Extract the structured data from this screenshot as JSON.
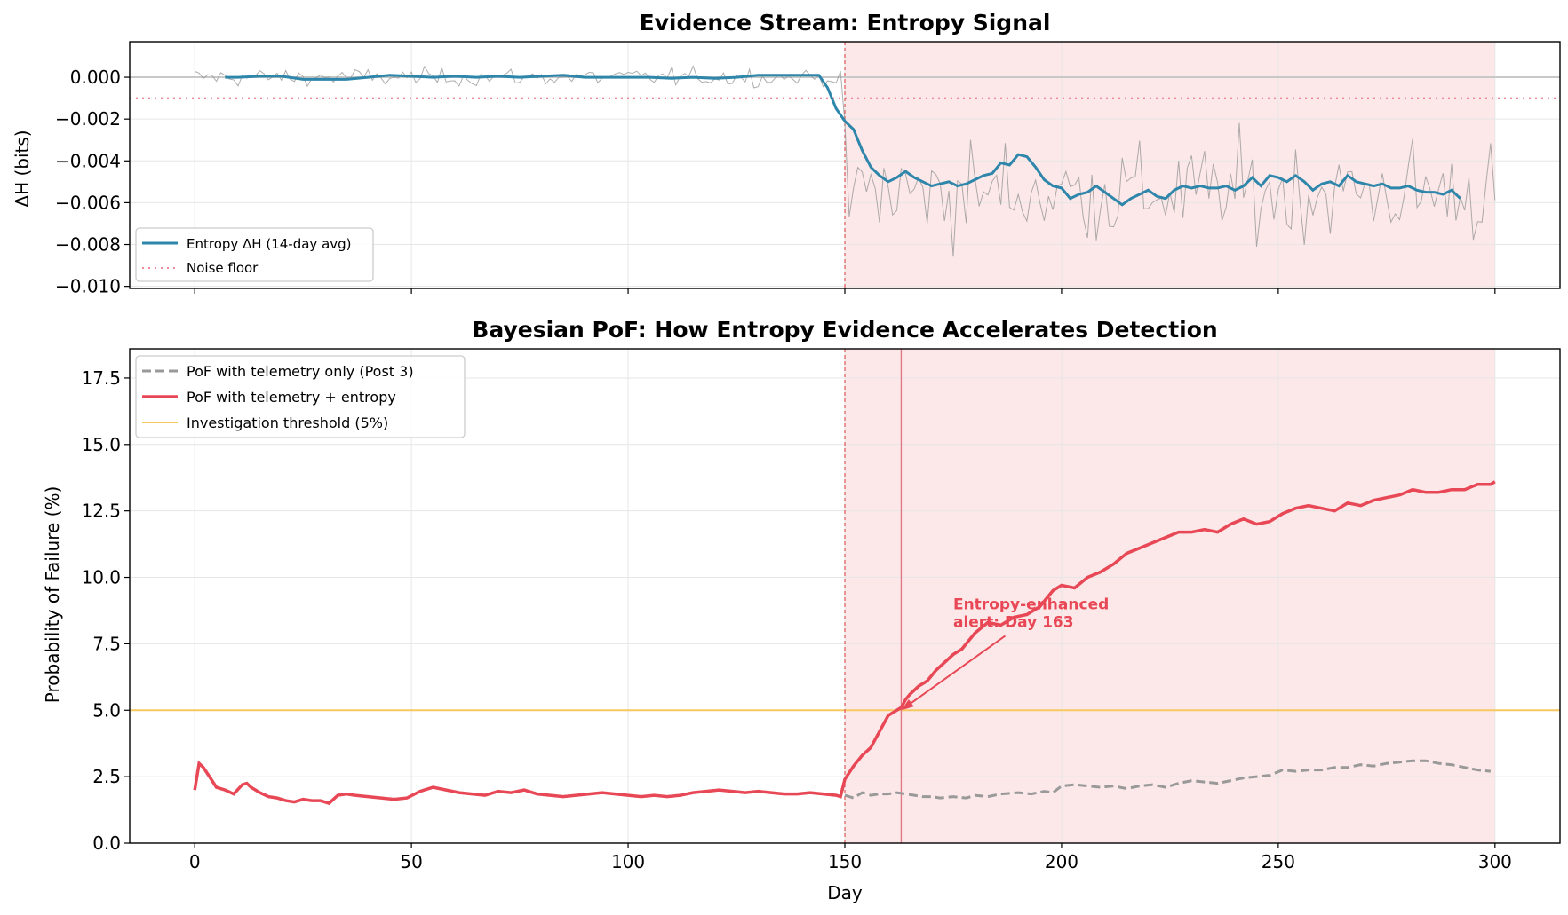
{
  "colors": {
    "entropy_avg": "#2e86ab",
    "raw_entropy": "#999999",
    "noise_floor": "#f08a9a",
    "pof_entropy": "#e84855",
    "pof_telemetry": "#999999",
    "threshold": "#f6c85f",
    "shade": "#fde8e9"
  },
  "chart_data": [
    {
      "type": "line",
      "title": "Evidence Stream: Entropy Signal",
      "xlabel": "",
      "ylabel": "ΔH (bits)",
      "xlim": [
        -15,
        315
      ],
      "ylim": [
        -0.0101,
        0.0017
      ],
      "x_ticks": [
        0,
        50,
        100,
        150,
        200,
        250,
        300
      ],
      "y_ticks": [
        0.0,
        -0.002,
        -0.004,
        -0.006,
        -0.008,
        -0.01
      ],
      "y_tick_labels": [
        "0.000",
        "−0.002",
        "−0.004",
        "−0.006",
        "−0.008",
        "−0.010"
      ],
      "grid": true,
      "shaded_region": [
        150,
        300
      ],
      "vline": 150,
      "zero_line": 0,
      "noise_floor": -0.001,
      "legend_position": "lower-left",
      "series": [
        {
          "name": "Entropy ΔH (14-day avg)",
          "x": [
            7,
            10,
            15,
            20,
            25,
            30,
            35,
            40,
            45,
            50,
            55,
            60,
            65,
            70,
            75,
            80,
            85,
            90,
            95,
            100,
            105,
            110,
            115,
            120,
            125,
            130,
            135,
            140,
            144,
            146,
            148,
            150,
            152,
            154,
            156,
            158,
            160,
            162,
            164,
            166,
            168,
            170,
            172,
            174,
            176,
            178,
            180,
            182,
            184,
            186,
            188,
            190,
            192,
            194,
            196,
            198,
            200,
            202,
            204,
            206,
            208,
            210,
            212,
            214,
            216,
            218,
            220,
            222,
            224,
            226,
            228,
            230,
            232,
            234,
            236,
            238,
            240,
            242,
            244,
            246,
            248,
            250,
            252,
            254,
            256,
            258,
            260,
            262,
            264,
            266,
            268,
            270,
            272,
            274,
            276,
            278,
            280,
            282,
            284,
            286,
            288,
            290,
            292
          ],
          "y": [
            0.0,
            0.0,
            5e-05,
            5e-05,
            -0.0001,
            -0.0001,
            -0.0001,
            0.0,
            0.0001,
            5e-05,
            0.0,
            5e-05,
            0.0,
            5e-05,
            0.0,
            5e-05,
            0.0001,
            0.0,
            0.0,
            0.0,
            0.0,
            -5e-05,
            0.0,
            -5e-05,
            0.0,
            0.0001,
            0.0001,
            0.0001,
            0.0001,
            -0.0005,
            -0.0015,
            -0.0021,
            -0.0025,
            -0.0035,
            -0.0043,
            -0.0047,
            -0.005,
            -0.0048,
            -0.0045,
            -0.0048,
            -0.005,
            -0.0052,
            -0.0051,
            -0.005,
            -0.0052,
            -0.0051,
            -0.0049,
            -0.0047,
            -0.0046,
            -0.0041,
            -0.0042,
            -0.0037,
            -0.0038,
            -0.0043,
            -0.0049,
            -0.0052,
            -0.0053,
            -0.0058,
            -0.0056,
            -0.0055,
            -0.0052,
            -0.0055,
            -0.0058,
            -0.0061,
            -0.0058,
            -0.0056,
            -0.0054,
            -0.0057,
            -0.0058,
            -0.0054,
            -0.0052,
            -0.0053,
            -0.0052,
            -0.0053,
            -0.0053,
            -0.0052,
            -0.0054,
            -0.0052,
            -0.0048,
            -0.0052,
            -0.0047,
            -0.0048,
            -0.005,
            -0.0047,
            -0.005,
            -0.0054,
            -0.0051,
            -0.005,
            -0.0052,
            -0.0047,
            -0.005,
            -0.0051,
            -0.0052,
            -0.0051,
            -0.0053,
            -0.0053,
            -0.0052,
            -0.0054,
            -0.0055,
            -0.0055,
            -0.0056,
            -0.0054,
            -0.0058
          ]
        },
        {
          "name": "Noise floor",
          "x": [
            -15,
            315
          ],
          "y": [
            -0.001,
            -0.001
          ]
        }
      ],
      "raw_signal": {
        "x_start": 0,
        "x_end": 300,
        "pre_change_std": 0.0003,
        "post_change_mean": -0.0055,
        "post_change_std": 0.0017,
        "change_day": 150
      }
    },
    {
      "type": "line",
      "title": "Bayesian PoF: How Entropy Evidence Accelerates Detection",
      "xlabel": "Day",
      "ylabel": "Probability of Failure (%)",
      "xlim": [
        -15,
        315
      ],
      "ylim": [
        0,
        18.6
      ],
      "x_ticks": [
        0,
        50,
        100,
        150,
        200,
        250,
        300
      ],
      "x_tick_labels": [
        "0",
        "50",
        "100",
        "150",
        "200",
        "250",
        "300"
      ],
      "y_ticks": [
        0.0,
        2.5,
        5.0,
        7.5,
        10.0,
        12.5,
        15.0,
        17.5
      ],
      "y_tick_labels": [
        "0.0",
        "2.5",
        "5.0",
        "7.5",
        "10.0",
        "12.5",
        "15.0",
        "17.5"
      ],
      "grid": true,
      "shaded_region": [
        150,
        300
      ],
      "vline": 150,
      "alert_vline": 163,
      "legend_position": "upper-left",
      "annotation": {
        "text_line1": "Entropy-enhanced",
        "text_line2": "alert: Day 163",
        "text_x": 175,
        "text_y": 8.8,
        "arrow_from_x": 187,
        "arrow_from_y": 7.8,
        "arrow_to_x": 163,
        "arrow_to_y": 5.0
      },
      "series": [
        {
          "name": "PoF with telemetry only (Post 3)",
          "x": [
            150,
            152,
            154,
            156,
            158,
            160,
            162,
            164,
            166,
            168,
            170,
            172,
            175,
            178,
            180,
            183,
            186,
            190,
            193,
            196,
            198,
            200,
            203,
            206,
            209,
            212,
            215,
            218,
            221,
            224,
            227,
            230,
            233,
            236,
            239,
            242,
            245,
            248,
            251,
            254,
            257,
            260,
            263,
            266,
            269,
            272,
            275,
            278,
            281,
            284,
            287,
            290,
            293,
            296,
            299
          ],
          "y": [
            1.8,
            1.7,
            1.9,
            1.8,
            1.85,
            1.85,
            1.9,
            1.85,
            1.8,
            1.75,
            1.75,
            1.7,
            1.75,
            1.7,
            1.8,
            1.75,
            1.85,
            1.9,
            1.85,
            1.95,
            1.9,
            2.15,
            2.2,
            2.15,
            2.1,
            2.15,
            2.05,
            2.15,
            2.2,
            2.1,
            2.25,
            2.35,
            2.3,
            2.25,
            2.35,
            2.45,
            2.5,
            2.55,
            2.75,
            2.7,
            2.75,
            2.75,
            2.85,
            2.85,
            2.95,
            2.9,
            3.0,
            3.05,
            3.1,
            3.1,
            3.0,
            2.95,
            2.85,
            2.75,
            2.7
          ]
        },
        {
          "name": "PoF with telemetry + entropy",
          "x": [
            0,
            1,
            2,
            3,
            5,
            7,
            9,
            11,
            12,
            13,
            15,
            17,
            19,
            21,
            23,
            25,
            27,
            29,
            31,
            33,
            35,
            37,
            40,
            43,
            46,
            49,
            52,
            55,
            58,
            61,
            64,
            67,
            70,
            73,
            76,
            79,
            82,
            85,
            88,
            91,
            94,
            97,
            100,
            103,
            106,
            109,
            112,
            115,
            118,
            121,
            124,
            127,
            130,
            133,
            136,
            139,
            142,
            145,
            148,
            149,
            150,
            152,
            154,
            156,
            158,
            160,
            162,
            163,
            164,
            165,
            167,
            169,
            171,
            173,
            175,
            177,
            180,
            183,
            186,
            189,
            192,
            195,
            198,
            200,
            203,
            206,
            209,
            212,
            215,
            218,
            221,
            224,
            227,
            230,
            233,
            236,
            239,
            242,
            245,
            248,
            251,
            254,
            257,
            260,
            263,
            266,
            269,
            272,
            275,
            278,
            281,
            284,
            287,
            290,
            293,
            296,
            299,
            300
          ],
          "y": [
            2.0,
            3.0,
            2.85,
            2.6,
            2.1,
            2.0,
            1.85,
            2.2,
            2.25,
            2.1,
            1.9,
            1.75,
            1.7,
            1.6,
            1.55,
            1.65,
            1.6,
            1.6,
            1.5,
            1.8,
            1.85,
            1.8,
            1.75,
            1.7,
            1.65,
            1.7,
            1.95,
            2.1,
            2.0,
            1.9,
            1.85,
            1.8,
            1.95,
            1.9,
            2.0,
            1.85,
            1.8,
            1.75,
            1.8,
            1.85,
            1.9,
            1.85,
            1.8,
            1.75,
            1.8,
            1.75,
            1.8,
            1.9,
            1.95,
            2.0,
            1.95,
            1.9,
            1.95,
            1.9,
            1.85,
            1.85,
            1.9,
            1.85,
            1.8,
            1.75,
            2.4,
            2.9,
            3.3,
            3.6,
            4.2,
            4.8,
            5.0,
            5.1,
            5.4,
            5.6,
            5.9,
            6.1,
            6.5,
            6.8,
            7.1,
            7.3,
            7.9,
            8.3,
            8.2,
            8.5,
            8.6,
            8.9,
            9.5,
            9.7,
            9.6,
            10.0,
            10.2,
            10.5,
            10.9,
            11.1,
            11.3,
            11.5,
            11.7,
            11.7,
            11.8,
            11.7,
            12.0,
            12.2,
            12.0,
            12.1,
            12.4,
            12.6,
            12.7,
            12.6,
            12.5,
            12.8,
            12.7,
            12.9,
            13.0,
            13.1,
            13.3,
            13.2,
            13.2,
            13.3,
            13.3,
            13.5,
            13.5,
            13.6
          ]
        },
        {
          "name": "Investigation threshold (5%)",
          "x": [
            -15,
            315
          ],
          "y": [
            5.0,
            5.0
          ]
        }
      ]
    }
  ]
}
